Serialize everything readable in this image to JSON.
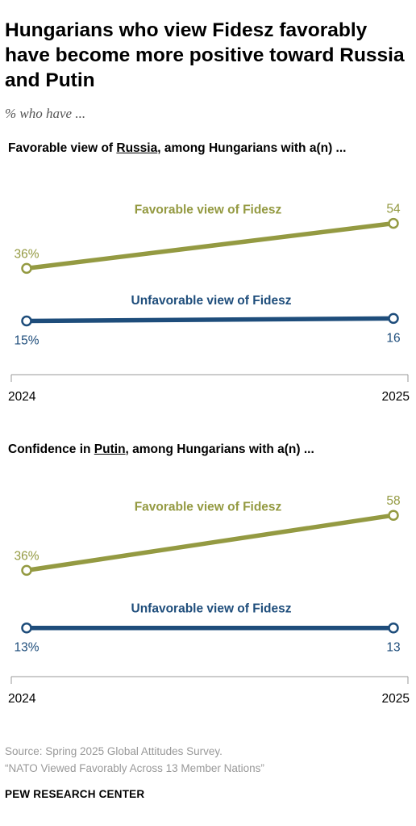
{
  "title": "Hungarians who view Fidesz favorably have become more positive toward Russia and Putin",
  "subtitle": "% who have ...",
  "colors": {
    "favorable": "#949a42",
    "unfavorable": "#1e4d7b",
    "axis": "#999999"
  },
  "chart_data": [
    {
      "type": "line",
      "title_prefix": "Favorable view of ",
      "title_keyword": "Russia",
      "title_suffix": ", among Hungarians with a(n) ...",
      "x": [
        "2024",
        "2025"
      ],
      "ylim": [
        0,
        70
      ],
      "series": [
        {
          "name": "Favorable view of Fidesz",
          "values": [
            36,
            54
          ],
          "labels": [
            "36%",
            "54"
          ]
        },
        {
          "name": "Unfavorable view of Fidesz",
          "values": [
            15,
            16
          ],
          "labels": [
            "15%",
            "16"
          ]
        }
      ]
    },
    {
      "type": "line",
      "title_prefix": "Confidence in ",
      "title_keyword": "Putin",
      "title_suffix": ", among Hungarians with a(n) ...",
      "x": [
        "2024",
        "2025"
      ],
      "ylim": [
        0,
        70
      ],
      "series": [
        {
          "name": "Favorable view of Fidesz",
          "values": [
            36,
            58
          ],
          "labels": [
            "36%",
            "58"
          ]
        },
        {
          "name": "Unfavorable view of Fidesz",
          "values": [
            13,
            13
          ],
          "labels": [
            "13%",
            "13"
          ]
        }
      ]
    }
  ],
  "source_line1": "Source: Spring 2025 Global Attitudes Survey.",
  "source_line2": "“NATO Viewed Favorably Across 13 Member Nations”",
  "brand": "PEW RESEARCH CENTER"
}
